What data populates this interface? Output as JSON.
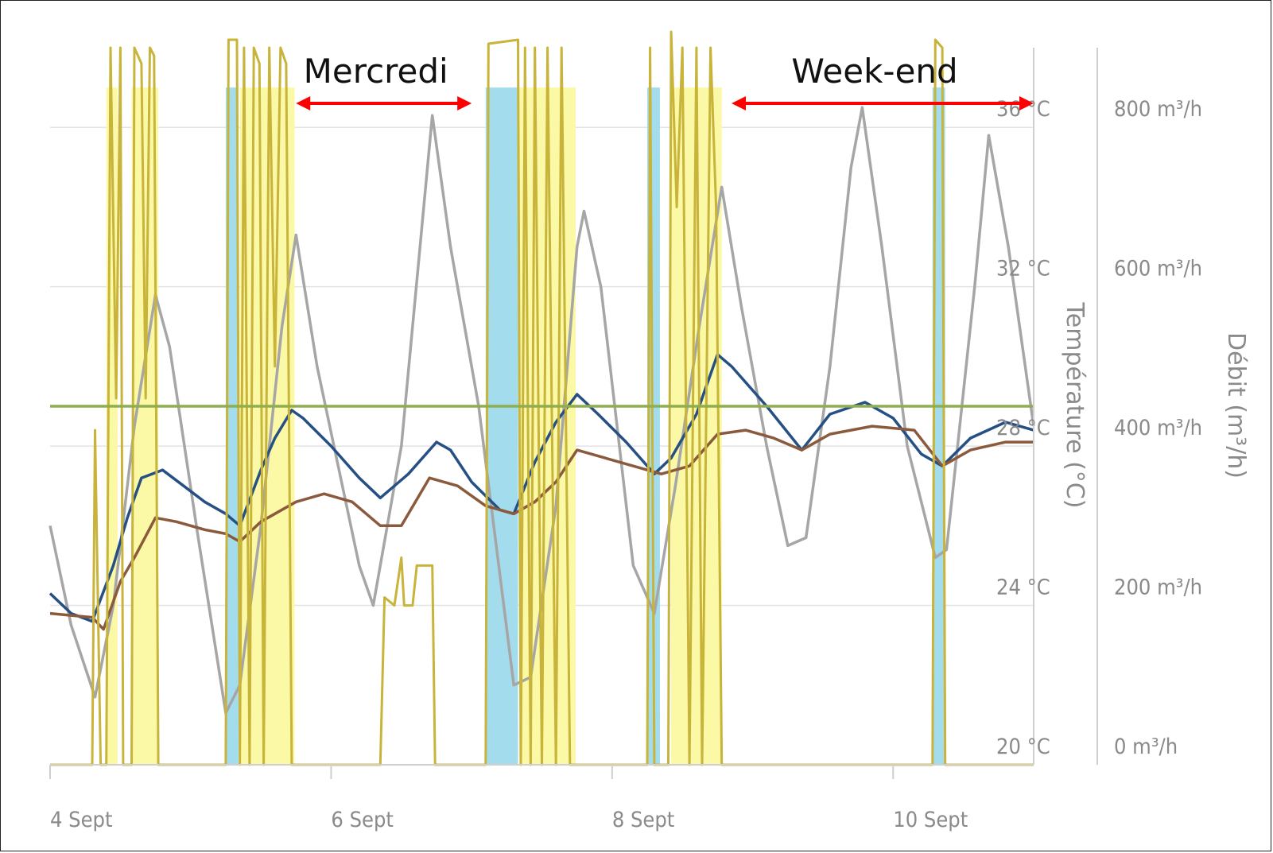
{
  "chart_data": {
    "type": "line",
    "title": "",
    "xlabel": "",
    "x_ticks": [
      {
        "x": 4,
        "label": "4 Sept"
      },
      {
        "x": 6,
        "label": "6 Sept"
      },
      {
        "x": 8,
        "label": "8 Sept"
      },
      {
        "x": 10,
        "label": "10 Sept"
      }
    ],
    "xlim": [
      4,
      11
    ],
    "y_left": {
      "label": "Température (°C)",
      "ylim": [
        20,
        38
      ],
      "ticks": [
        {
          "v": 20,
          "label": "20 °C"
        },
        {
          "v": 24,
          "label": "24 °C"
        },
        {
          "v": 28,
          "label": "28 °C"
        },
        {
          "v": 32,
          "label": "32 °C"
        },
        {
          "v": 36,
          "label": "36 °C"
        }
      ]
    },
    "y_right": {
      "label": "Débit (m³/h)",
      "ylim": [
        0,
        900
      ],
      "ticks": [
        {
          "v": 0,
          "label": "0 m³/h"
        },
        {
          "v": 200,
          "label": "200 m³/h"
        },
        {
          "v": 400,
          "label": "400 m³/h"
        },
        {
          "v": 600,
          "label": "600 m³/h"
        },
        {
          "v": 800,
          "label": "800 m³/h"
        }
      ]
    },
    "grid": true,
    "annotations": [
      {
        "text": "Mercredi",
        "from": 5.75,
        "to": 7.0
      },
      {
        "text": "Week-end",
        "from": 8.85,
        "to": 11.0
      }
    ],
    "bands_yellow": [
      [
        4.4,
        4.48
      ],
      [
        4.58,
        4.77
      ],
      [
        5.35,
        5.74
      ],
      [
        7.34,
        7.74
      ],
      [
        8.42,
        8.78
      ]
    ],
    "bands_blue": [
      [
        5.25,
        5.34
      ],
      [
        7.1,
        7.33
      ],
      [
        8.25,
        8.34
      ],
      [
        10.28,
        10.37
      ]
    ],
    "series": [
      {
        "color": "#a6a6a6",
        "axis": "left",
        "width": 3.5,
        "points": [
          [
            4.0,
            26.0
          ],
          [
            4.15,
            23.5
          ],
          [
            4.32,
            21.7
          ],
          [
            4.45,
            24.0
          ],
          [
            4.6,
            28.5
          ],
          [
            4.75,
            31.8
          ],
          [
            4.85,
            30.5
          ],
          [
            5.05,
            25.8
          ],
          [
            5.25,
            21.3
          ],
          [
            5.35,
            22.0
          ],
          [
            5.5,
            26.0
          ],
          [
            5.65,
            31.0
          ],
          [
            5.75,
            33.3
          ],
          [
            5.9,
            30.0
          ],
          [
            6.2,
            25.0
          ],
          [
            6.3,
            24.0
          ],
          [
            6.5,
            28.0
          ],
          [
            6.72,
            36.3
          ],
          [
            6.85,
            33.0
          ],
          [
            7.05,
            29.0
          ],
          [
            7.3,
            22.0
          ],
          [
            7.42,
            22.2
          ],
          [
            7.6,
            26.5
          ],
          [
            7.75,
            33.0
          ],
          [
            7.8,
            33.9
          ],
          [
            7.92,
            32.0
          ],
          [
            8.15,
            25.0
          ],
          [
            8.3,
            23.8
          ],
          [
            8.45,
            27.0
          ],
          [
            8.62,
            31.0
          ],
          [
            8.78,
            34.5
          ],
          [
            8.92,
            31.5
          ],
          [
            9.1,
            28.0
          ],
          [
            9.25,
            25.5
          ],
          [
            9.38,
            25.7
          ],
          [
            9.55,
            30.0
          ],
          [
            9.7,
            35.0
          ],
          [
            9.78,
            36.5
          ],
          [
            9.92,
            33.0
          ],
          [
            10.1,
            28.0
          ],
          [
            10.3,
            25.2
          ],
          [
            10.38,
            25.4
          ],
          [
            10.58,
            32.0
          ],
          [
            10.68,
            35.8
          ],
          [
            10.82,
            33.0
          ],
          [
            11.0,
            28.5
          ]
        ]
      },
      {
        "color": "#264f84",
        "axis": "left",
        "width": 3.5,
        "points": [
          [
            4.0,
            24.3
          ],
          [
            4.15,
            23.8
          ],
          [
            4.3,
            23.6
          ],
          [
            4.45,
            25.0
          ],
          [
            4.55,
            26.2
          ],
          [
            4.65,
            27.2
          ],
          [
            4.8,
            27.4
          ],
          [
            4.95,
            27.0
          ],
          [
            5.1,
            26.6
          ],
          [
            5.25,
            26.3
          ],
          [
            5.35,
            26.0
          ],
          [
            5.5,
            27.4
          ],
          [
            5.6,
            28.2
          ],
          [
            5.72,
            28.9
          ],
          [
            5.8,
            28.7
          ],
          [
            6.0,
            28.0
          ],
          [
            6.2,
            27.2
          ],
          [
            6.35,
            26.7
          ],
          [
            6.55,
            27.3
          ],
          [
            6.75,
            28.1
          ],
          [
            6.85,
            27.9
          ],
          [
            7.0,
            27.1
          ],
          [
            7.2,
            26.4
          ],
          [
            7.3,
            26.3
          ],
          [
            7.45,
            27.6
          ],
          [
            7.6,
            28.6
          ],
          [
            7.75,
            29.3
          ],
          [
            7.9,
            28.8
          ],
          [
            8.1,
            28.1
          ],
          [
            8.3,
            27.3
          ],
          [
            8.42,
            27.7
          ],
          [
            8.6,
            28.8
          ],
          [
            8.75,
            30.3
          ],
          [
            8.85,
            30.0
          ],
          [
            9.1,
            29.0
          ],
          [
            9.35,
            27.9
          ],
          [
            9.55,
            28.8
          ],
          [
            9.8,
            29.1
          ],
          [
            10.0,
            28.7
          ],
          [
            10.2,
            27.8
          ],
          [
            10.35,
            27.5
          ],
          [
            10.55,
            28.2
          ],
          [
            10.8,
            28.6
          ],
          [
            11.0,
            28.4
          ]
        ]
      },
      {
        "color": "#8b5a3c",
        "axis": "left",
        "width": 3.5,
        "points": [
          [
            4.0,
            23.8
          ],
          [
            4.3,
            23.7
          ],
          [
            4.38,
            23.4
          ],
          [
            4.5,
            24.6
          ],
          [
            4.6,
            25.2
          ],
          [
            4.75,
            26.2
          ],
          [
            4.9,
            26.1
          ],
          [
            5.1,
            25.9
          ],
          [
            5.25,
            25.8
          ],
          [
            5.35,
            25.6
          ],
          [
            5.5,
            26.1
          ],
          [
            5.6,
            26.3
          ],
          [
            5.75,
            26.6
          ],
          [
            5.95,
            26.8
          ],
          [
            6.15,
            26.6
          ],
          [
            6.35,
            26.0
          ],
          [
            6.5,
            26.0
          ],
          [
            6.7,
            27.2
          ],
          [
            6.9,
            27.0
          ],
          [
            7.1,
            26.5
          ],
          [
            7.3,
            26.3
          ],
          [
            7.45,
            26.6
          ],
          [
            7.6,
            27.1
          ],
          [
            7.75,
            27.9
          ],
          [
            7.95,
            27.7
          ],
          [
            8.15,
            27.5
          ],
          [
            8.35,
            27.3
          ],
          [
            8.55,
            27.5
          ],
          [
            8.75,
            28.3
          ],
          [
            8.95,
            28.4
          ],
          [
            9.15,
            28.2
          ],
          [
            9.35,
            27.9
          ],
          [
            9.55,
            28.3
          ],
          [
            9.85,
            28.5
          ],
          [
            10.15,
            28.4
          ],
          [
            10.35,
            27.5
          ],
          [
            10.55,
            27.9
          ],
          [
            10.8,
            28.1
          ],
          [
            11.0,
            28.1
          ]
        ]
      },
      {
        "color": "#c8b43a",
        "axis": "right",
        "width": 3,
        "points": [
          [
            4.0,
            0
          ],
          [
            4.3,
            0
          ],
          [
            4.32,
            420
          ],
          [
            4.36,
            0
          ],
          [
            4.4,
            0
          ],
          [
            4.43,
            900
          ],
          [
            4.47,
            460
          ],
          [
            4.5,
            900
          ],
          [
            4.52,
            0
          ],
          [
            4.58,
            0
          ],
          [
            4.6,
            900
          ],
          [
            4.65,
            880
          ],
          [
            4.68,
            460
          ],
          [
            4.71,
            900
          ],
          [
            4.74,
            890
          ],
          [
            4.77,
            0
          ],
          [
            5.25,
            0
          ],
          [
            5.27,
            910
          ],
          [
            5.33,
            910
          ],
          [
            5.35,
            0
          ],
          [
            5.38,
            900
          ],
          [
            5.42,
            0
          ],
          [
            5.45,
            900
          ],
          [
            5.49,
            880
          ],
          [
            5.52,
            0
          ],
          [
            5.56,
            900
          ],
          [
            5.6,
            500
          ],
          [
            5.64,
            900
          ],
          [
            5.68,
            880
          ],
          [
            5.72,
            0
          ],
          [
            6.35,
            0
          ],
          [
            6.38,
            210
          ],
          [
            6.45,
            200
          ],
          [
            6.5,
            260
          ],
          [
            6.52,
            200
          ],
          [
            6.58,
            200
          ],
          [
            6.61,
            250
          ],
          [
            6.72,
            250
          ],
          [
            6.74,
            0
          ],
          [
            7.1,
            0
          ],
          [
            7.12,
            905
          ],
          [
            7.33,
            910
          ],
          [
            7.35,
            0
          ],
          [
            7.38,
            900
          ],
          [
            7.42,
            0
          ],
          [
            7.45,
            900
          ],
          [
            7.5,
            0
          ],
          [
            7.54,
            900
          ],
          [
            7.6,
            0
          ],
          [
            7.64,
            900
          ],
          [
            7.7,
            0
          ],
          [
            7.74,
            0
          ],
          [
            8.25,
            0
          ],
          [
            8.27,
            900
          ],
          [
            8.3,
            0
          ],
          [
            8.4,
            0
          ],
          [
            8.42,
            920
          ],
          [
            8.46,
            700
          ],
          [
            8.5,
            900
          ],
          [
            8.55,
            0
          ],
          [
            8.6,
            900
          ],
          [
            8.64,
            0
          ],
          [
            8.7,
            900
          ],
          [
            8.74,
            700
          ],
          [
            8.78,
            0
          ],
          [
            10.28,
            0
          ],
          [
            10.3,
            910
          ],
          [
            10.35,
            900
          ],
          [
            10.37,
            0
          ],
          [
            11.0,
            0
          ]
        ]
      },
      {
        "color": "#8fae4e",
        "axis": "left",
        "width": 3.5,
        "points": [
          [
            4.0,
            29.0
          ],
          [
            11.0,
            29.0
          ]
        ]
      }
    ]
  }
}
